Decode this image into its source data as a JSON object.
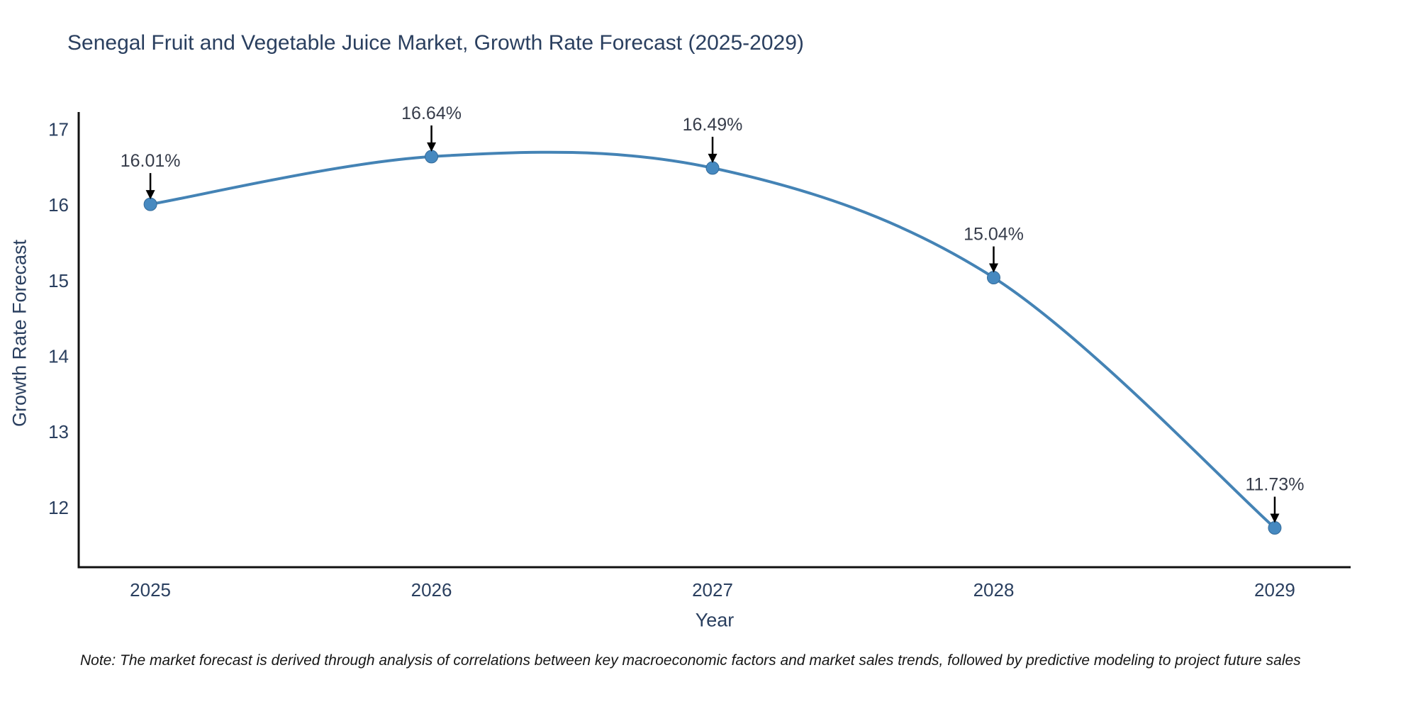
{
  "title": "Senegal Fruit and Vegetable Juice Market, Growth Rate Forecast (2025-2029)",
  "note": "Note: The market forecast is derived through analysis of correlations between key macroeconomic factors and market sales trends, followed by predictive modeling to project future sales",
  "colors": {
    "line": "#4483b5",
    "marker": "#4689c0",
    "marker_edge": "#336a99",
    "axis": "#111111",
    "tick_text": "#2a3f5f",
    "annotation_text": "#363c4a",
    "arrow": "#000000",
    "background": "#ffffff"
  },
  "chart_data": {
    "type": "line",
    "title": "Senegal Fruit and Vegetable Juice Market, Growth Rate Forecast (2025-2029)",
    "x": [
      2025,
      2026,
      2027,
      2028,
      2029
    ],
    "values": [
      16.01,
      16.64,
      16.49,
      15.04,
      11.73
    ],
    "point_labels": [
      "16.01%",
      "16.64%",
      "16.49%",
      "15.04%",
      "11.73%"
    ],
    "xlabel": "Year",
    "ylabel": "Growth Rate Forecast",
    "xticks": [
      "2025",
      "2026",
      "2027",
      "2028",
      "2029"
    ],
    "xtick_values": [
      2025,
      2026,
      2027,
      2028,
      2029
    ],
    "yticks": [
      "12",
      "13",
      "14",
      "15",
      "16",
      "17"
    ],
    "ytick_values": [
      12,
      13,
      14,
      15,
      16,
      17
    ],
    "xlim": [
      2024.745,
      2029.27
    ],
    "ylim": [
      11.21,
      17.23
    ],
    "line_shape": "spline",
    "grid": false,
    "legend": false
  }
}
